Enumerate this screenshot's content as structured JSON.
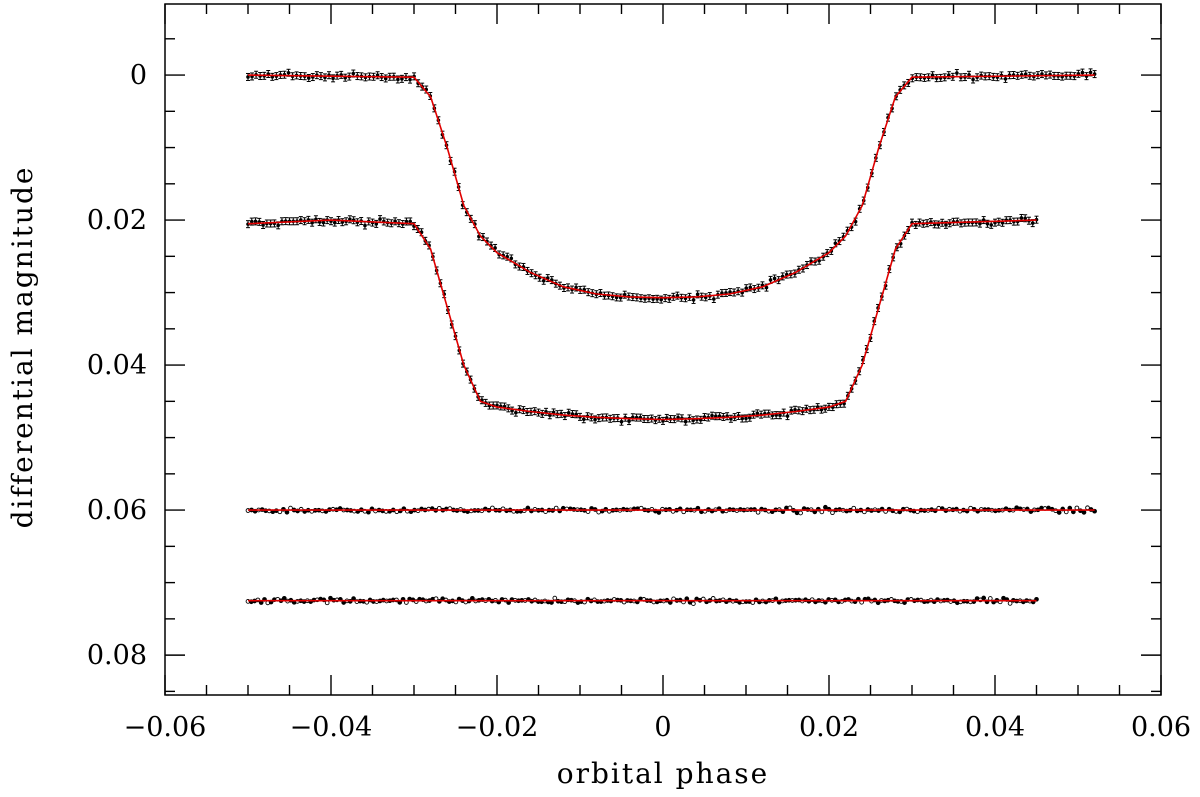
{
  "chart_data": {
    "type": "scatter",
    "title": "",
    "xlabel": "orbital phase",
    "ylabel": "differential magnitude",
    "xlim": [
      -0.06,
      0.06
    ],
    "ylim": [
      0.0855,
      -0.0098
    ],
    "y_inverted": true,
    "x_ticks_major": [
      -0.06,
      -0.04,
      -0.02,
      0,
      0.02,
      0.04,
      0.06
    ],
    "x_tick_labels": [
      "−0.06",
      "−0.04",
      "−0.02",
      "0",
      "0.02",
      "0.04",
      "0.06"
    ],
    "x_ticks_minor_step": 0.005,
    "y_ticks_major": [
      0,
      0.02,
      0.04,
      0.06,
      0.08
    ],
    "y_tick_labels": [
      "0",
      "0.02",
      "0.04",
      "0.06",
      "0.08"
    ],
    "y_ticks_minor_step": 0.005,
    "grid": false,
    "model_color": "#e00000",
    "data_color": "#000000",
    "series": [
      {
        "kind": "light-curve",
        "error_bars": true,
        "x_range": [
          -0.05,
          0.052
        ],
        "baseline": 0.0,
        "model": [
          [
            -0.05,
            0.0
          ],
          [
            -0.03,
            0.0003
          ],
          [
            -0.028,
            0.003
          ],
          [
            -0.026,
            0.01
          ],
          [
            -0.024,
            0.018
          ],
          [
            -0.022,
            0.0222
          ],
          [
            -0.02,
            0.0245
          ],
          [
            -0.016,
            0.0272
          ],
          [
            -0.012,
            0.0292
          ],
          [
            -0.008,
            0.0302
          ],
          [
            -0.004,
            0.0306
          ],
          [
            0.0,
            0.0307
          ],
          [
            0.004,
            0.0306
          ],
          [
            0.008,
            0.0302
          ],
          [
            0.012,
            0.0292
          ],
          [
            0.016,
            0.0272
          ],
          [
            0.02,
            0.0245
          ],
          [
            0.022,
            0.0222
          ],
          [
            0.024,
            0.018
          ],
          [
            0.026,
            0.01
          ],
          [
            0.028,
            0.003
          ],
          [
            0.03,
            0.0003
          ],
          [
            0.052,
            0.0
          ]
        ]
      },
      {
        "kind": "light-curve",
        "error_bars": true,
        "x_range": [
          -0.05,
          0.045
        ],
        "baseline": 0.02,
        "model": [
          [
            -0.05,
            0.0205
          ],
          [
            -0.04,
            0.02
          ],
          [
            -0.03,
            0.0205
          ],
          [
            -0.028,
            0.024
          ],
          [
            -0.026,
            0.032
          ],
          [
            -0.024,
            0.04
          ],
          [
            -0.022,
            0.045
          ],
          [
            -0.02,
            0.0458
          ],
          [
            -0.016,
            0.0464
          ],
          [
            -0.012,
            0.0469
          ],
          [
            -0.008,
            0.0472
          ],
          [
            -0.004,
            0.0474
          ],
          [
            0.0,
            0.0475
          ],
          [
            0.004,
            0.0474
          ],
          [
            0.008,
            0.0472
          ],
          [
            0.012,
            0.0469
          ],
          [
            0.016,
            0.0464
          ],
          [
            0.02,
            0.0458
          ],
          [
            0.022,
            0.045
          ],
          [
            0.024,
            0.04
          ],
          [
            0.026,
            0.032
          ],
          [
            0.028,
            0.024
          ],
          [
            0.03,
            0.0205
          ],
          [
            0.045,
            0.02
          ]
        ]
      },
      {
        "kind": "residuals",
        "error_bars": false,
        "x_range": [
          -0.05,
          0.052
        ],
        "baseline": 0.06,
        "model": [
          [
            -0.05,
            0.06
          ],
          [
            0.052,
            0.06
          ]
        ]
      },
      {
        "kind": "residuals",
        "error_bars": false,
        "x_range": [
          -0.05,
          0.045
        ],
        "baseline": 0.0725,
        "model": [
          [
            -0.05,
            0.0725
          ],
          [
            0.045,
            0.0725
          ]
        ]
      }
    ]
  }
}
